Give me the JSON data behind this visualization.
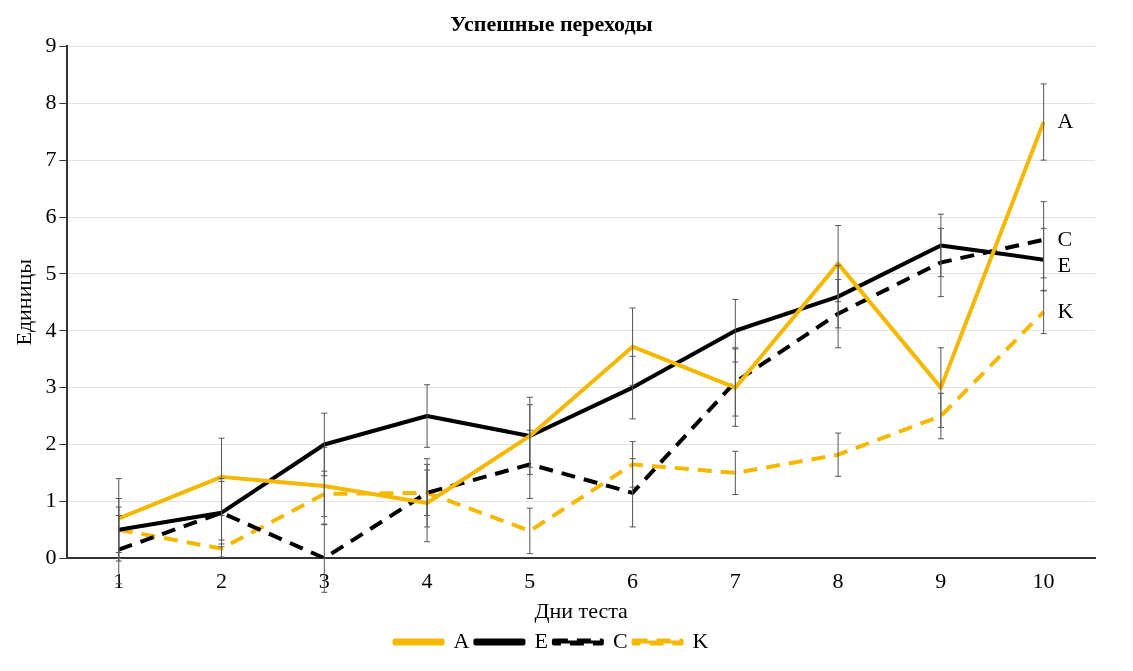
{
  "chart_data": {
    "type": "line",
    "title": "Успешные переходы",
    "xlabel": "Дни теста",
    "ylabel": "Единицы",
    "categories": [
      "1",
      "2",
      "3",
      "4",
      "5",
      "6",
      "7",
      "8",
      "9",
      "10"
    ],
    "ylim": [
      0,
      9
    ],
    "yticks": [
      0,
      1,
      2,
      3,
      4,
      5,
      6,
      7,
      8,
      9
    ],
    "grid": "y",
    "legend": "bottom",
    "marker": "none",
    "series": [
      {
        "name": "A",
        "color": "#f5b800",
        "line_style": "solid",
        "values": [
          0.7,
          1.43,
          1.27,
          0.97,
          2.15,
          3.72,
          3.0,
          5.18,
          3.0,
          7.67
        ],
        "errors": [
          0.7,
          0.68,
          0.68,
          0.68,
          0.68,
          0.68,
          0.68,
          0.67,
          0.7,
          0.67
        ]
      },
      {
        "name": "E",
        "color": "#000000",
        "line_style": "solid",
        "values": [
          0.5,
          0.8,
          2.0,
          2.5,
          2.15,
          3.0,
          4.0,
          4.6,
          5.5,
          5.25
        ],
        "errors": [
          0.55,
          0.55,
          0.55,
          0.55,
          0.55,
          0.55,
          0.55,
          0.55,
          0.55,
          0.55
        ]
      },
      {
        "name": "C",
        "color": "#000000",
        "line_style": "dashed",
        "values": [
          0.15,
          0.8,
          0.0,
          1.15,
          1.65,
          1.15,
          3.1,
          4.3,
          5.2,
          5.6
        ],
        "errors": [
          0.6,
          0.6,
          0.6,
          0.6,
          0.6,
          0.6,
          0.6,
          0.6,
          0.6,
          0.67
        ]
      },
      {
        "name": "K",
        "color": "#f5b800",
        "line_style": "dashed",
        "values": [
          0.5,
          0.17,
          1.13,
          1.15,
          0.48,
          1.65,
          1.5,
          1.82,
          2.5,
          4.33
        ],
        "errors": [
          0.4,
          0.15,
          0.4,
          0.4,
          0.4,
          0.4,
          0.38,
          0.38,
          0.4,
          0.38
        ]
      }
    ]
  }
}
